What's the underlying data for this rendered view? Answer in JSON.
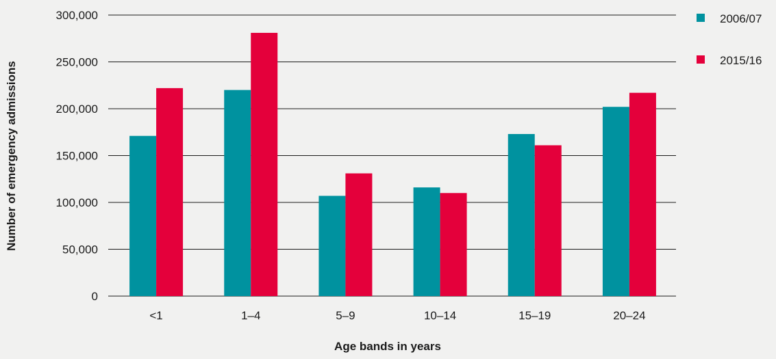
{
  "chart_data": {
    "type": "bar",
    "categories": [
      "<1",
      "1–4",
      "5–9",
      "10–14",
      "15–19",
      "20–24"
    ],
    "series": [
      {
        "name": "2006/07",
        "color": "#00929f",
        "values": [
          171000,
          220000,
          107000,
          116000,
          173000,
          202000
        ]
      },
      {
        "name": "2015/16",
        "color": "#e4003b",
        "values": [
          222000,
          281000,
          131000,
          110000,
          161000,
          217000
        ]
      }
    ],
    "xlabel": "Age bands in years",
    "ylabel": "Number of emergency admissions",
    "ylim": [
      0,
      300000
    ],
    "yticks": [
      {
        "value": 0,
        "label": "0"
      },
      {
        "value": 50000,
        "label": "50,000"
      },
      {
        "value": 100000,
        "label": "100,000"
      },
      {
        "value": 150000,
        "label": "150,000"
      },
      {
        "value": 200000,
        "label": "200,000"
      },
      {
        "value": 250000,
        "label": "250,000"
      },
      {
        "value": 300000,
        "label": "300,000"
      }
    ],
    "grid": true,
    "legend_position": "top-right"
  }
}
